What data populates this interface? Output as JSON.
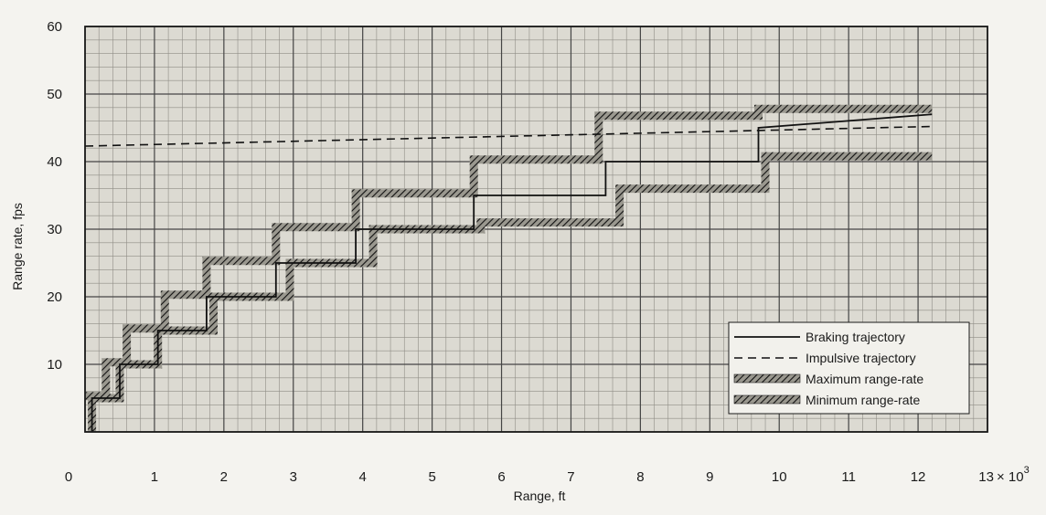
{
  "chart_data": {
    "type": "line",
    "xlabel": "Range, ft",
    "ylabel": "Range rate, fps",
    "xlim": [
      0,
      13000
    ],
    "ylim": [
      0,
      60
    ],
    "x_ticks": [
      0,
      1,
      2,
      3,
      4,
      5,
      6,
      7,
      8,
      9,
      10,
      11,
      12
    ],
    "x_tick_labels": [
      "0",
      "1",
      "2",
      "3",
      "4",
      "5",
      "6",
      "7",
      "8",
      "9",
      "10",
      "11",
      "12"
    ],
    "x_last_tick": {
      "value": 13,
      "base": "13",
      "multiplier": "× 10",
      "exponent": "3"
    },
    "y_ticks": [
      10,
      20,
      30,
      40,
      50,
      60
    ],
    "y_tick_labels": [
      "10",
      "20",
      "30",
      "40",
      "50",
      "60"
    ],
    "grid": true,
    "legend_position": "lower-right",
    "series": [
      {
        "name": "Braking trajectory",
        "style": "solid",
        "x": [
          100,
          100,
          500,
          500,
          1050,
          1050,
          1750,
          1750,
          2750,
          2750,
          3900,
          3900,
          5600,
          5600,
          7500,
          7500,
          9700,
          9700,
          12200
        ],
        "y": [
          0,
          5,
          5,
          10,
          10,
          15,
          15,
          20,
          20,
          25,
          25,
          30,
          30,
          35,
          35,
          40,
          40,
          45,
          47
        ]
      },
      {
        "name": "Impulsive trajectory",
        "style": "dashed",
        "x": [
          0,
          12200
        ],
        "y": [
          42.3,
          45.2
        ]
      },
      {
        "name": "Maximum range-rate",
        "style": "hatched",
        "x": [
          0,
          300,
          300,
          600,
          600,
          1150,
          1150,
          1750,
          1750,
          2750,
          2750,
          3900,
          3900,
          5600,
          5600,
          7400,
          7400,
          9700,
          9700,
          12200
        ],
        "y": [
          5.3,
          5.3,
          10.3,
          10.3,
          15.3,
          15.3,
          20.3,
          20.3,
          25.3,
          25.3,
          30.3,
          30.3,
          35.3,
          35.3,
          40.3,
          40.3,
          46.8,
          46.8,
          47.8,
          47.8
        ]
      },
      {
        "name": "Minimum range-rate",
        "style": "hatched",
        "x": [
          100,
          100,
          500,
          500,
          1050,
          1050,
          1850,
          1850,
          2950,
          2950,
          4150,
          4150,
          5700,
          5700,
          7700,
          7700,
          9800,
          9800,
          12200
        ],
        "y": [
          0,
          5,
          5,
          10,
          10,
          15,
          15,
          20,
          20,
          25,
          25,
          30,
          30,
          31,
          31,
          36,
          36,
          40.8,
          40.8
        ]
      }
    ]
  },
  "colors": {
    "plot_background": "#dcdad2",
    "grid_major": "#454545",
    "grid_minor": "#8f8d86",
    "ink": "#1a1a1a"
  }
}
